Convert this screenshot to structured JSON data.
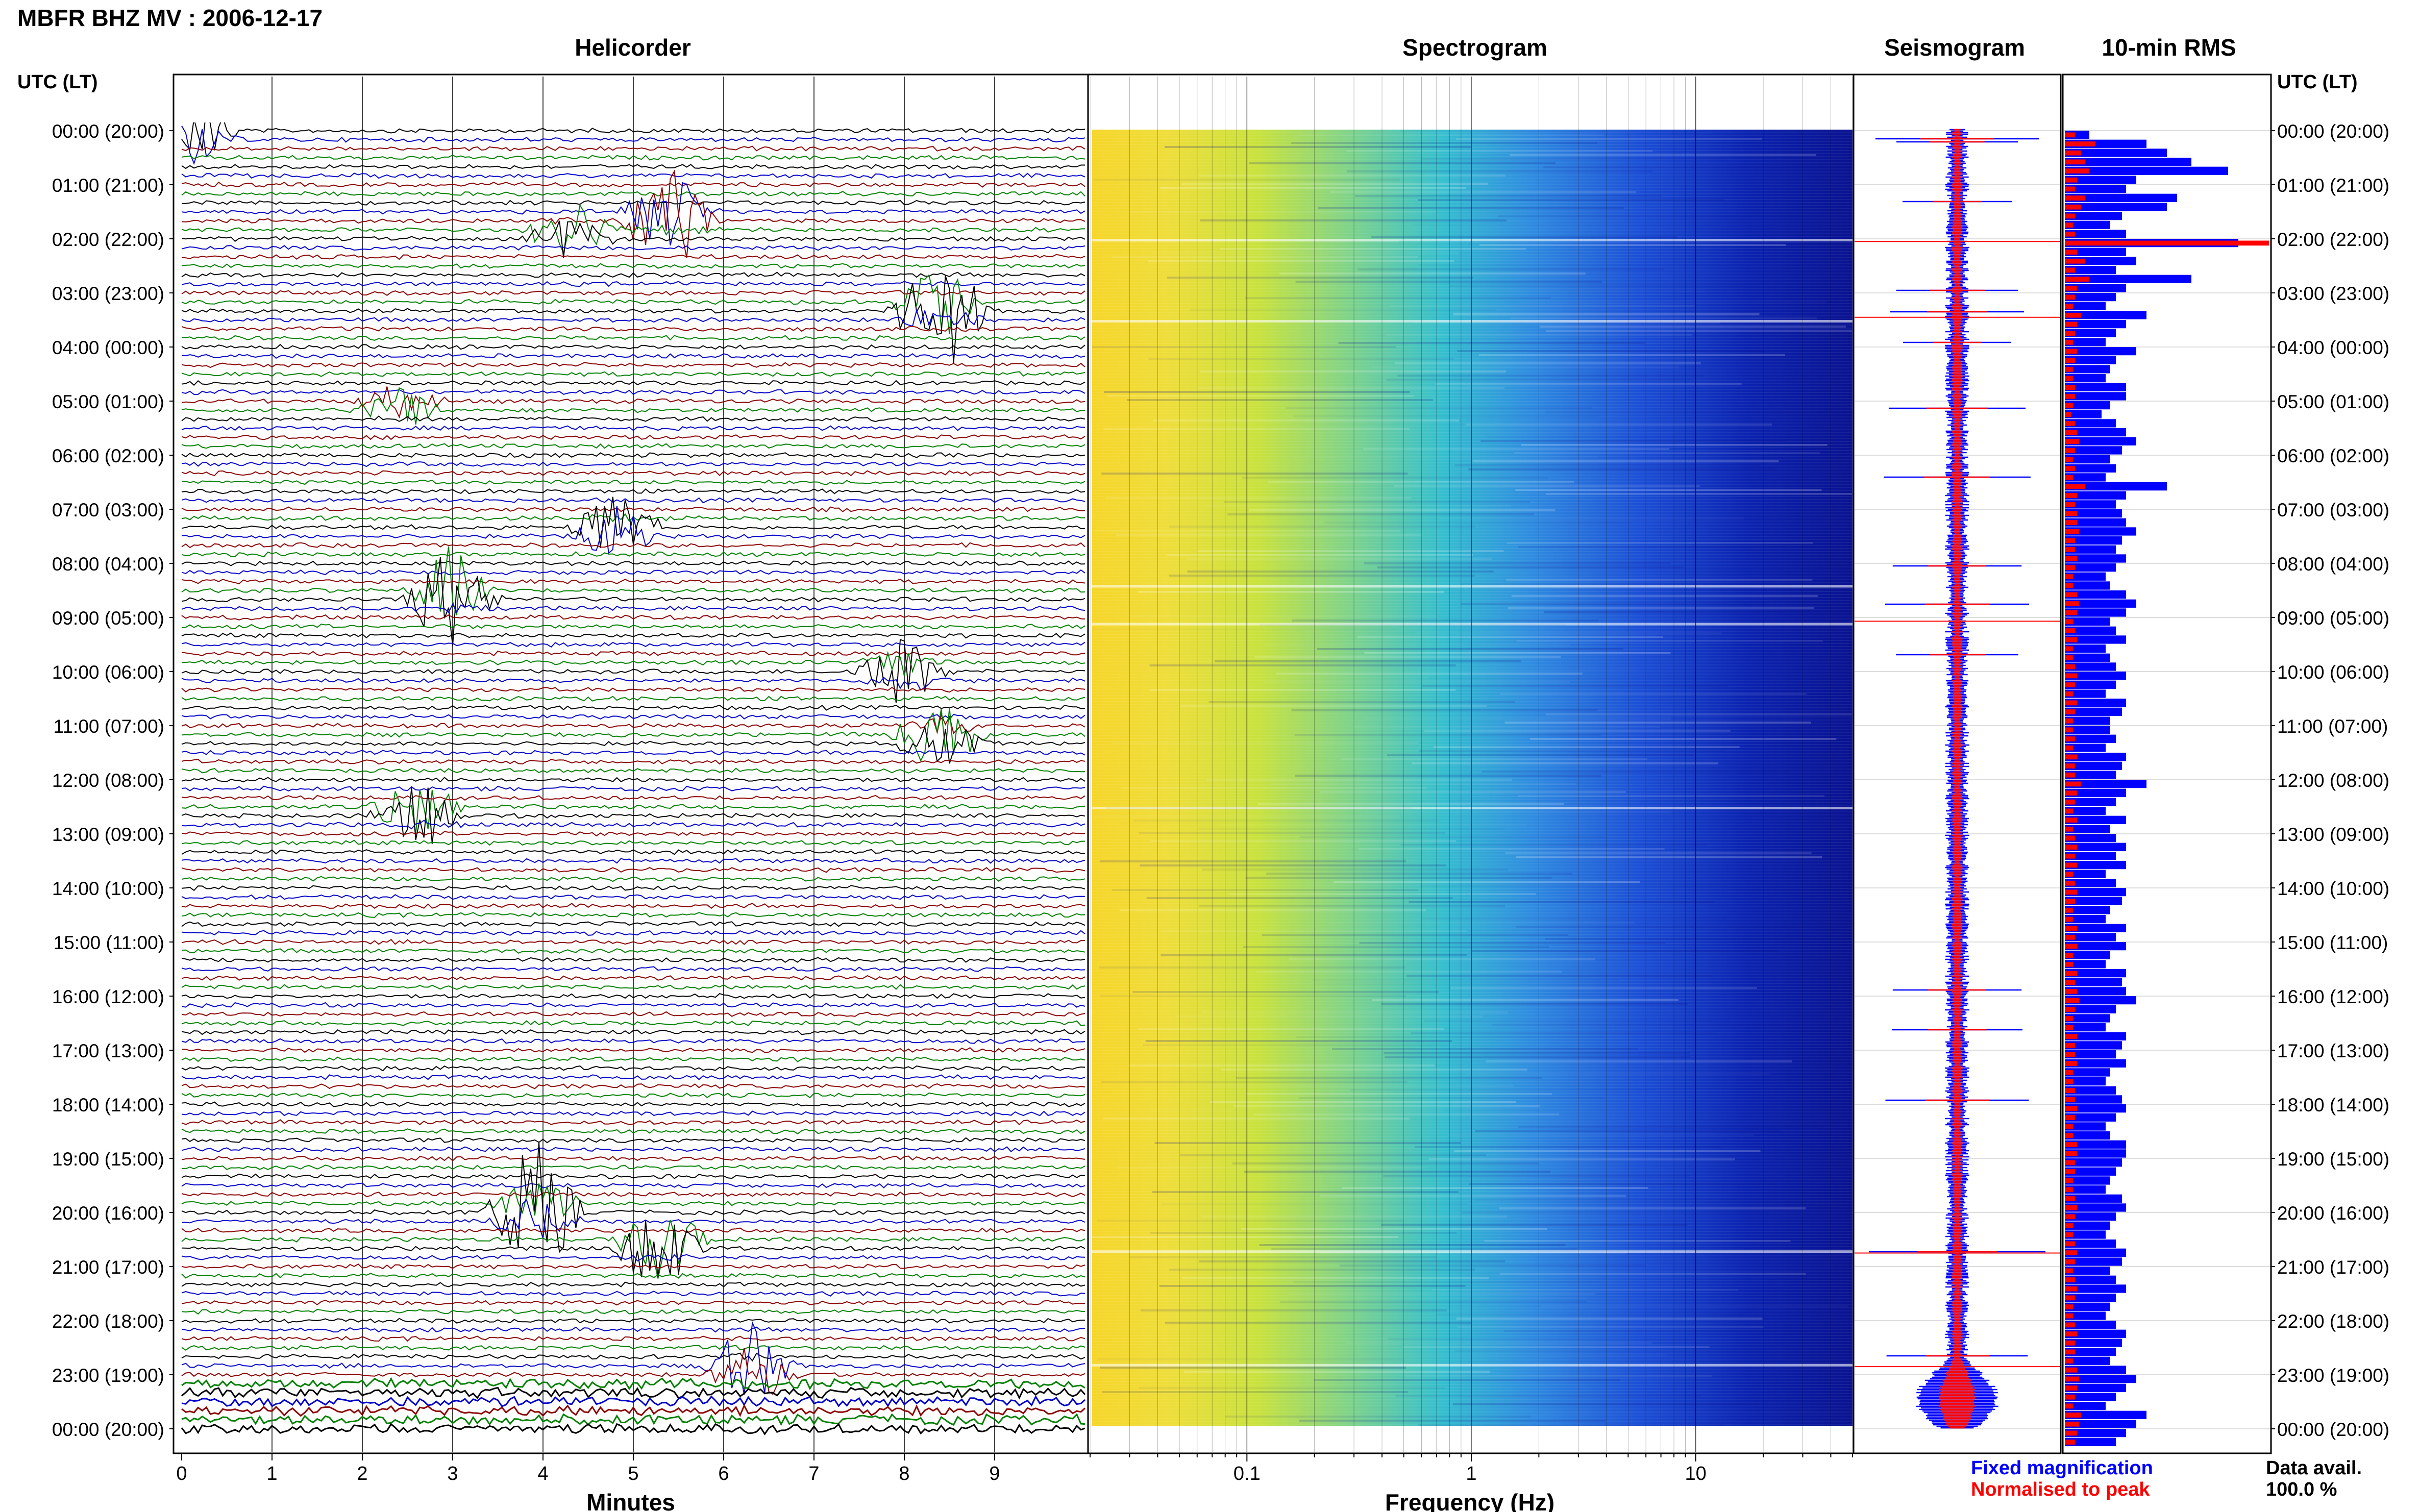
{
  "header": {
    "title": "MBFR BHZ MV : 2006-12-17",
    "utc_label_left": "UTC (LT)",
    "utc_label_right": "UTC (LT)"
  },
  "panels": {
    "helicorder": "Helicorder",
    "spectrogram": "Spectrogram",
    "seismogram": "Seismogram",
    "rms": "10-min RMS"
  },
  "legend": {
    "fixed": "Fixed magnification",
    "normalised": "Normalised to peak",
    "data_avail_label": "Data avail.",
    "data_avail_value": "100.0 %"
  },
  "colors": {
    "trace_cycle": [
      "#000000",
      "#0000cc",
      "#8b0000",
      "#008000"
    ],
    "fixed": "#0000ff",
    "normalised": "#ff0000",
    "spec_low": "#f2d21b",
    "spec_mid": "#33c6c9",
    "spec_high": "#0a14a8"
  },
  "chart_data": [
    {
      "type": "heatmap",
      "name": "helicorder",
      "title": "Helicorder",
      "xlabel": "Minutes",
      "xlim": [
        0,
        10
      ],
      "x_ticks": [
        "0",
        "1",
        "2",
        "3",
        "4",
        "5",
        "6",
        "7",
        "8",
        "9"
      ],
      "y_tick_labels": [
        "00:00 (20:00)",
        "01:00 (21:00)",
        "02:00 (22:00)",
        "03:00 (23:00)",
        "04:00 (00:00)",
        "05:00 (01:00)",
        "06:00 (02:00)",
        "07:00 (03:00)",
        "08:00 (04:00)",
        "09:00 (05:00)",
        "10:00 (06:00)",
        "11:00 (07:00)",
        "12:00 (08:00)",
        "13:00 (09:00)",
        "14:00 (10:00)",
        "15:00 (11:00)",
        "16:00 (12:00)",
        "17:00 (13:00)",
        "18:00 (14:00)",
        "19:00 (15:00)",
        "20:00 (16:00)",
        "21:00 (17:00)",
        "22:00 (18:00)",
        "23:00 (19:00)",
        "00:00 (20:00)"
      ],
      "lines_per_hour": 6,
      "grid": true,
      "events": [
        {
          "hour": 0.05,
          "minute": 0.1,
          "amp": 3.5
        },
        {
          "hour": 1.6,
          "minute": 5.4,
          "amp": 5.0
        },
        {
          "hour": 1.9,
          "minute": 4.3,
          "amp": 3.0
        },
        {
          "hour": 3.3,
          "minute": 8.4,
          "amp": 5.5
        },
        {
          "hour": 5.1,
          "minute": 2.4,
          "amp": 2.0
        },
        {
          "hour": 7.4,
          "minute": 4.8,
          "amp": 3.5
        },
        {
          "hour": 8.6,
          "minute": 3.0,
          "amp": 5.0
        },
        {
          "hour": 10.0,
          "minute": 8.0,
          "amp": 2.5
        },
        {
          "hour": 11.2,
          "minute": 8.4,
          "amp": 3.5
        },
        {
          "hour": 12.6,
          "minute": 2.6,
          "amp": 3.5
        },
        {
          "hour": 20.0,
          "minute": 3.9,
          "amp": 5.0
        },
        {
          "hour": 20.6,
          "minute": 5.3,
          "amp": 4.5
        },
        {
          "hour": 22.9,
          "minute": 6.3,
          "amp": 4.0
        }
      ]
    },
    {
      "type": "heatmap",
      "name": "spectrogram",
      "title": "Spectrogram",
      "xlabel": "Frequency (Hz)",
      "x_scale": "log",
      "xlim": [
        0.02,
        50
      ],
      "x_ticks": [
        0.1,
        1,
        10
      ],
      "x_tick_labels": [
        "0.1",
        "1",
        "10"
      ],
      "grid": true
    },
    {
      "type": "line",
      "name": "seismogram",
      "title": "Seismogram",
      "series": [
        {
          "name": "Fixed magnification",
          "color": "#0000ff"
        },
        {
          "name": "Normalised to peak",
          "color": "#ff0000"
        }
      ]
    },
    {
      "type": "bar",
      "name": "10-min RMS",
      "title": "10-min RMS",
      "orientation": "horizontal",
      "xlim": [
        0,
        1
      ],
      "series": [
        {
          "name": "Fixed magnification",
          "color": "#0000ff",
          "values": [
            0.12,
            0.4,
            0.5,
            0.62,
            0.8,
            0.35,
            0.3,
            0.55,
            0.5,
            0.28,
            0.22,
            0.3,
            0.85,
            0.3,
            0.35,
            0.25,
            0.62,
            0.3,
            0.25,
            0.2,
            0.4,
            0.3,
            0.25,
            0.2,
            0.35,
            0.25,
            0.22,
            0.2,
            0.3,
            0.3,
            0.22,
            0.18,
            0.25,
            0.3,
            0.35,
            0.28,
            0.22,
            0.25,
            0.2,
            0.5,
            0.3,
            0.25,
            0.28,
            0.3,
            0.35,
            0.28,
            0.25,
            0.3,
            0.25,
            0.2,
            0.22,
            0.3,
            0.35,
            0.3,
            0.22,
            0.25,
            0.3,
            0.2,
            0.22,
            0.25,
            0.3,
            0.25,
            0.2,
            0.3,
            0.28,
            0.22,
            0.22,
            0.25,
            0.2,
            0.3,
            0.28,
            0.25,
            0.4,
            0.3,
            0.25,
            0.2,
            0.3,
            0.22,
            0.25,
            0.3,
            0.25,
            0.3,
            0.2,
            0.25,
            0.3,
            0.28,
            0.22,
            0.2,
            0.3,
            0.25,
            0.3,
            0.22,
            0.2,
            0.3,
            0.28,
            0.3,
            0.35,
            0.25,
            0.22,
            0.2,
            0.3,
            0.28,
            0.25,
            0.3,
            0.22,
            0.2,
            0.25,
            0.28,
            0.3,
            0.25,
            0.2,
            0.22,
            0.3,
            0.3,
            0.28,
            0.25,
            0.22,
            0.2,
            0.28,
            0.3,
            0.25,
            0.22,
            0.2,
            0.25,
            0.3,
            0.28,
            0.22,
            0.25,
            0.3,
            0.25,
            0.22,
            0.2,
            0.25,
            0.3,
            0.28,
            0.25,
            0.22,
            0.3,
            0.35,
            0.3,
            0.25,
            0.2,
            0.4,
            0.35,
            0.3,
            0.25
          ]
        },
        {
          "name": "Normalised to peak",
          "color": "#ff0000",
          "values": [
            0.05,
            0.15,
            0.08,
            0.1,
            0.12,
            0.06,
            0.05,
            0.1,
            0.08,
            0.05,
            0.04,
            0.05,
            1.0,
            0.06,
            0.1,
            0.05,
            0.12,
            0.06,
            0.05,
            0.04,
            0.08,
            0.06,
            0.05,
            0.04,
            0.06,
            0.05,
            0.04,
            0.04,
            0.05,
            0.05,
            0.04,
            0.03,
            0.05,
            0.06,
            0.07,
            0.05,
            0.04,
            0.05,
            0.04,
            0.1,
            0.06,
            0.05,
            0.06,
            0.06,
            0.07,
            0.05,
            0.05,
            0.06,
            0.05,
            0.04,
            0.04,
            0.06,
            0.07,
            0.06,
            0.04,
            0.05,
            0.06,
            0.04,
            0.04,
            0.05,
            0.06,
            0.05,
            0.04,
            0.06,
            0.05,
            0.04,
            0.04,
            0.05,
            0.04,
            0.06,
            0.05,
            0.05,
            0.08,
            0.06,
            0.05,
            0.04,
            0.06,
            0.04,
            0.05,
            0.06,
            0.05,
            0.06,
            0.04,
            0.05,
            0.06,
            0.05,
            0.04,
            0.04,
            0.06,
            0.05,
            0.06,
            0.04,
            0.04,
            0.06,
            0.05,
            0.06,
            0.07,
            0.05,
            0.04,
            0.04,
            0.06,
            0.05,
            0.05,
            0.06,
            0.04,
            0.04,
            0.05,
            0.05,
            0.06,
            0.05,
            0.04,
            0.04,
            0.06,
            0.06,
            0.05,
            0.05,
            0.04,
            0.04,
            0.05,
            0.06,
            0.05,
            0.04,
            0.04,
            0.05,
            0.06,
            0.05,
            0.04,
            0.05,
            0.06,
            0.05,
            0.04,
            0.04,
            0.05,
            0.06,
            0.05,
            0.05,
            0.04,
            0.06,
            0.07,
            0.06,
            0.05,
            0.04,
            0.08,
            0.07,
            0.06,
            0.05
          ]
        }
      ]
    }
  ]
}
